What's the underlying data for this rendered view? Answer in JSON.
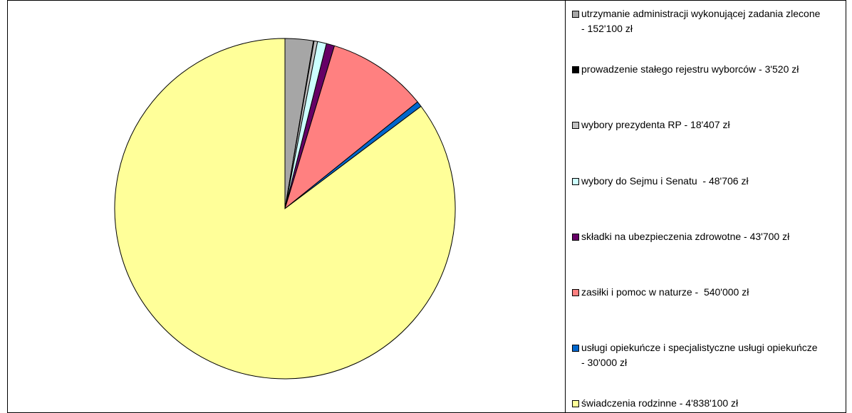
{
  "chart_data": {
    "type": "pie",
    "categories": [
      "utrzymanie administracji wykonującej zadania zlecone - 152'100 zł",
      "prowadzenie stałego rejestru wyborców - 3'520 zł",
      "wybory prezydenta RP - 18'407 zł",
      "wybory do Sejmu i Senatu  - 48'706 zł",
      "składki na ubezpieczenia zdrowotne - 43'700 zł",
      "zasiłki i pomoc w naturze -  540'000 zł",
      "usługi opiekuńcze i specjalistyczne usługi opiekuńcze - 30'000 zł",
      "świadczenia rodzinne - 4'838'100 zł"
    ],
    "values": [
      152100,
      3520,
      18407,
      48706,
      43700,
      540000,
      30000,
      4838100
    ],
    "colors": [
      "#a6a6a6",
      "#000000",
      "#c0c0c0",
      "#ccffff",
      "#660066",
      "#ff8080",
      "#0066cc",
      "#ffff99"
    ],
    "legend": "right"
  }
}
